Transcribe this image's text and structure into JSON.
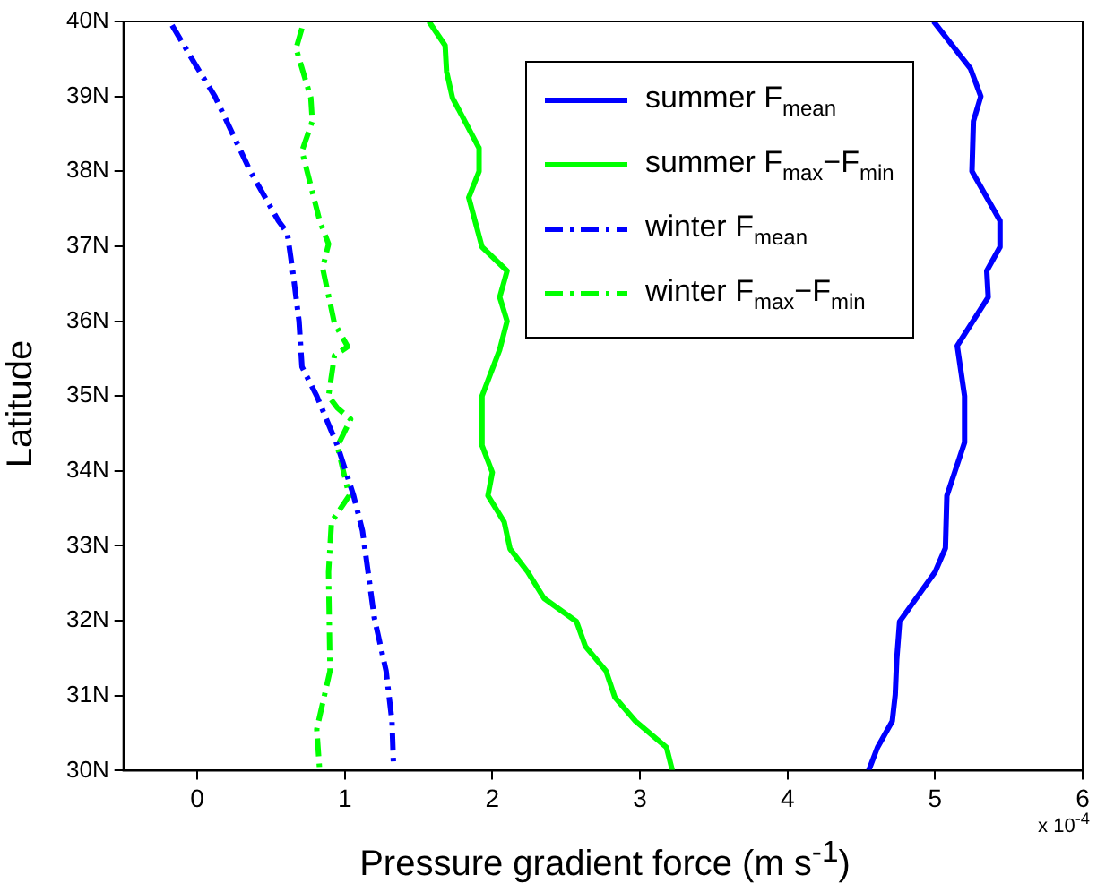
{
  "chart_data": {
    "type": "line",
    "xlabel": "Pressure gradient force (m s$^{-1}$)",
    "ylabel": "Latitude",
    "annotations": [
      "x 10$^{-4}$"
    ],
    "xlim": [
      -0.5,
      6
    ],
    "xticks": [
      0,
      1,
      2,
      3,
      4,
      5,
      6
    ],
    "ylim": [
      30,
      40
    ],
    "yticks": [
      {
        "value": 30,
        "label": "30N"
      },
      {
        "value": 31,
        "label": "31N"
      },
      {
        "value": 32,
        "label": "32N"
      },
      {
        "value": 33,
        "label": "33N"
      },
      {
        "value": 34,
        "label": "34N"
      },
      {
        "value": 35,
        "label": "35N"
      },
      {
        "value": 36,
        "label": "36N"
      },
      {
        "value": 37,
        "label": "37N"
      },
      {
        "value": 38,
        "label": "38N"
      },
      {
        "value": 39,
        "label": "39N"
      },
      {
        "value": 40,
        "label": "40N"
      }
    ],
    "grid": false,
    "legend": "top right",
    "marker": "none",
    "series": [
      {
        "name": "summer F$_{mean}$",
        "color": "#0000ff",
        "line_style": "solid",
        "x": [
          4.99,
          5.24,
          5.31,
          5.26,
          5.25,
          5.44,
          5.44,
          5.35,
          5.36,
          5.15,
          5.2,
          5.2,
          5.08,
          5.07,
          5.0,
          4.76,
          4.74,
          4.73,
          4.71,
          4.61,
          4.55
        ],
        "values": [
          40,
          39.37,
          39.0,
          38.67,
          38.0,
          37.34,
          36.99,
          36.67,
          36.32,
          35.67,
          35.0,
          34.38,
          33.67,
          32.97,
          32.65,
          31.99,
          31.48,
          31.01,
          30.66,
          30.31,
          30
        ]
      },
      {
        "name": "summer F$_{max}$−F$_{min}$",
        "color": "#00ff00",
        "line_style": "solid",
        "x": [
          1.57,
          1.68,
          1.69,
          1.73,
          1.91,
          1.91,
          1.84,
          1.93,
          2.1,
          2.05,
          2.1,
          2.05,
          1.93,
          1.93,
          2.0,
          1.97,
          2.08,
          2.12,
          2.24,
          2.35,
          2.57,
          2.63,
          2.77,
          2.83,
          2.97,
          3.18,
          3.22
        ],
        "values": [
          40,
          39.68,
          39.33,
          38.98,
          38.31,
          38.0,
          37.65,
          36.99,
          36.67,
          36.32,
          36.0,
          35.62,
          35.0,
          34.34,
          33.98,
          33.67,
          33.32,
          32.96,
          32.65,
          32.3,
          31.99,
          31.66,
          31.33,
          30.98,
          30.66,
          30.31,
          30
        ]
      },
      {
        "name": "winter F$_{mean}$",
        "color": "#0000ff",
        "line_style": "dashed",
        "x": [
          -0.17,
          -0.02,
          0.12,
          0.36,
          0.55,
          0.61,
          0.65,
          0.69,
          0.71,
          0.81,
          0.95,
          1.06,
          1.12,
          1.2,
          1.28,
          1.32,
          1.33
        ],
        "values": [
          39.95,
          39.45,
          39.0,
          38.0,
          37.34,
          37.18,
          36.63,
          36.0,
          35.39,
          35.0,
          34.34,
          33.67,
          33.2,
          32.04,
          31.33,
          30.66,
          30.08
        ]
      },
      {
        "name": "winter F$_{max}$−F$_{min}$",
        "color": "#00ff00",
        "line_style": "dashed",
        "x": [
          0.71,
          0.67,
          0.77,
          0.78,
          0.71,
          0.83,
          0.89,
          0.85,
          0.93,
          1.02,
          0.93,
          0.89,
          0.95,
          1.04,
          0.95,
          1.03,
          0.91,
          0.89,
          0.9,
          0.81,
          0.83
        ],
        "values": [
          39.91,
          39.64,
          38.98,
          38.67,
          38.27,
          37.34,
          37.03,
          36.71,
          35.97,
          35.66,
          35.54,
          35.0,
          34.84,
          34.69,
          34.33,
          33.67,
          33.32,
          32.65,
          31.33,
          30.55,
          30
        ]
      }
    ]
  }
}
